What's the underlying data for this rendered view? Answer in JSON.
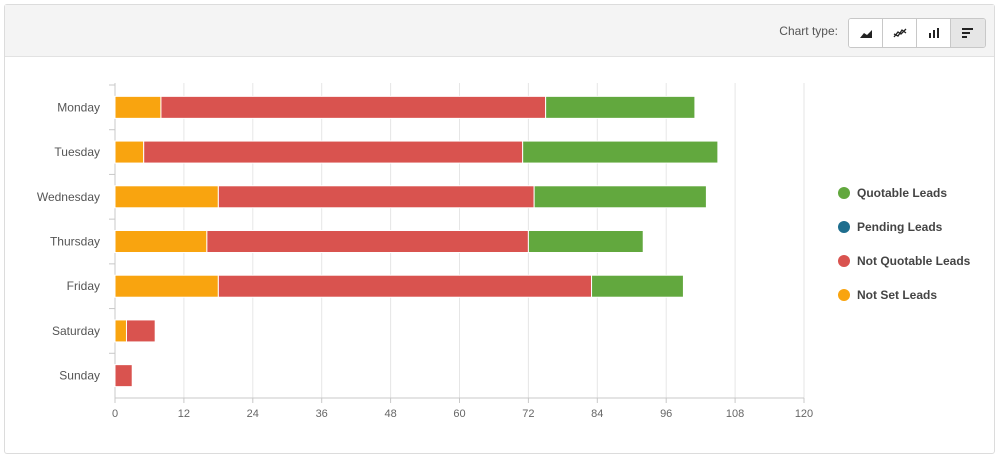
{
  "toolbar": {
    "label": "Chart type:",
    "buttons": [
      {
        "icon": "area-chart-icon",
        "active": false
      },
      {
        "icon": "line-chart-icon",
        "active": false
      },
      {
        "icon": "column-chart-icon",
        "active": false
      },
      {
        "icon": "bar-chart-icon",
        "active": true
      }
    ]
  },
  "chart_data": {
    "type": "bar",
    "orientation": "horizontal",
    "stacked": true,
    "categories": [
      "Monday",
      "Tuesday",
      "Wednesday",
      "Thursday",
      "Friday",
      "Saturday",
      "Sunday"
    ],
    "series": [
      {
        "name": "Not Set Leads",
        "color": "#f9a40f",
        "values": [
          8,
          5,
          18,
          16,
          18,
          2,
          0
        ]
      },
      {
        "name": "Not Quotable Leads",
        "color": "#d9534f",
        "values": [
          67,
          66,
          55,
          56,
          65,
          5,
          3
        ]
      },
      {
        "name": "Quotable Leads",
        "color": "#62a83e",
        "values": [
          26,
          34,
          30,
          20,
          16,
          0,
          0
        ]
      },
      {
        "name": "Pending Leads",
        "color": "#1e6e8e",
        "values": [
          0,
          0,
          0,
          0,
          0,
          0,
          0
        ]
      }
    ],
    "legend": [
      {
        "name": "Quotable Leads",
        "color": "#62a83e"
      },
      {
        "name": "Pending Leads",
        "color": "#1e6e8e"
      },
      {
        "name": "Not Quotable Leads",
        "color": "#d9534f"
      },
      {
        "name": "Not Set Leads",
        "color": "#f9a40f"
      }
    ],
    "legend_position": "right",
    "xlim": [
      0,
      120
    ],
    "xticks": [
      0,
      12,
      24,
      36,
      48,
      60,
      72,
      84,
      96,
      108,
      120
    ],
    "grid": true
  }
}
